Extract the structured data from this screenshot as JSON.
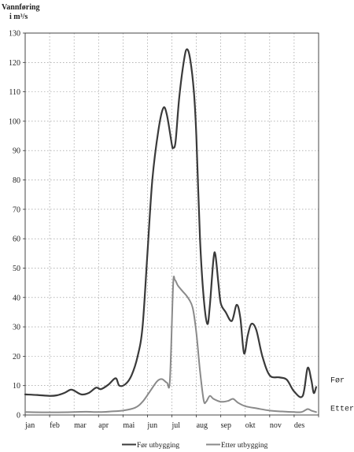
{
  "chart_data": {
    "type": "line",
    "ylabel_lines": [
      "Vannføring",
      "i m³/s"
    ],
    "xlabel": "",
    "ylim": [
      0,
      130
    ],
    "yticks": [
      0,
      10,
      20,
      30,
      40,
      50,
      60,
      70,
      80,
      90,
      100,
      110,
      120,
      130
    ],
    "categories": [
      "jan",
      "feb",
      "mar",
      "apr",
      "mai",
      "jun",
      "jul",
      "aug",
      "sep",
      "okt",
      "nov",
      "des"
    ],
    "grid": true,
    "legend_position": "bottom",
    "series": [
      {
        "name": "Før utbygging",
        "end_label": "Før",
        "color": "#3a3a3a",
        "points": [
          [
            0.0,
            7.0
          ],
          [
            0.5,
            6.8
          ],
          [
            1.0,
            6.5
          ],
          [
            1.3,
            6.7
          ],
          [
            1.6,
            7.5
          ],
          [
            1.85,
            8.6
          ],
          [
            2.0,
            8.3
          ],
          [
            2.3,
            7.0
          ],
          [
            2.6,
            7.5
          ],
          [
            2.9,
            9.3
          ],
          [
            3.1,
            8.8
          ],
          [
            3.4,
            10.3
          ],
          [
            3.7,
            12.5
          ],
          [
            3.85,
            10.0
          ],
          [
            4.1,
            10.5
          ],
          [
            4.35,
            13.5
          ],
          [
            4.6,
            20.0
          ],
          [
            4.8,
            30.0
          ],
          [
            5.0,
            55.0
          ],
          [
            5.2,
            80.0
          ],
          [
            5.45,
            97.0
          ],
          [
            5.65,
            104.5
          ],
          [
            5.8,
            102.0
          ],
          [
            6.0,
            92.0
          ],
          [
            6.05,
            91.0
          ],
          [
            6.15,
            93.0
          ],
          [
            6.3,
            108.0
          ],
          [
            6.5,
            121.0
          ],
          [
            6.62,
            124.5
          ],
          [
            6.75,
            121.0
          ],
          [
            6.9,
            110.0
          ],
          [
            7.0,
            95.0
          ],
          [
            7.15,
            60.0
          ],
          [
            7.3,
            40.0
          ],
          [
            7.45,
            31.0
          ],
          [
            7.55,
            37.0
          ],
          [
            7.7,
            53.0
          ],
          [
            7.78,
            54.5
          ],
          [
            7.9,
            45.0
          ],
          [
            8.0,
            38.0
          ],
          [
            8.2,
            35.0
          ],
          [
            8.45,
            32.0
          ],
          [
            8.65,
            37.5
          ],
          [
            8.8,
            33.0
          ],
          [
            8.95,
            21.0
          ],
          [
            9.1,
            27.0
          ],
          [
            9.25,
            31.0
          ],
          [
            9.45,
            29.0
          ],
          [
            9.7,
            20.0
          ],
          [
            10.0,
            13.5
          ],
          [
            10.4,
            12.8
          ],
          [
            10.7,
            12.0
          ],
          [
            11.0,
            8.0
          ],
          [
            11.35,
            6.5
          ],
          [
            11.55,
            16.0
          ],
          [
            11.7,
            12.0
          ],
          [
            11.8,
            7.5
          ],
          [
            11.9,
            9.5
          ]
        ]
      },
      {
        "name": "Etter utbygging",
        "end_label": "Etter",
        "color": "#8a8a8a",
        "points": [
          [
            0.0,
            1.0
          ],
          [
            1.0,
            0.9
          ],
          [
            2.0,
            1.0
          ],
          [
            2.5,
            1.1
          ],
          [
            3.0,
            1.0
          ],
          [
            3.5,
            1.2
          ],
          [
            4.0,
            1.5
          ],
          [
            4.5,
            2.5
          ],
          [
            4.8,
            4.5
          ],
          [
            5.1,
            8.0
          ],
          [
            5.4,
            11.5
          ],
          [
            5.6,
            12.2
          ],
          [
            5.8,
            11.0
          ],
          [
            5.92,
            12.0
          ],
          [
            6.05,
            44.0
          ],
          [
            6.12,
            46.0
          ],
          [
            6.25,
            44.0
          ],
          [
            6.45,
            42.0
          ],
          [
            6.65,
            40.0
          ],
          [
            6.85,
            36.5
          ],
          [
            7.0,
            28.0
          ],
          [
            7.15,
            15.0
          ],
          [
            7.3,
            5.0
          ],
          [
            7.4,
            4.5
          ],
          [
            7.55,
            6.5
          ],
          [
            7.7,
            5.5
          ],
          [
            8.0,
            4.5
          ],
          [
            8.3,
            4.8
          ],
          [
            8.5,
            5.5
          ],
          [
            8.7,
            4.2
          ],
          [
            9.0,
            3.0
          ],
          [
            9.5,
            2.2
          ],
          [
            10.0,
            1.5
          ],
          [
            10.5,
            1.2
          ],
          [
            11.0,
            1.0
          ],
          [
            11.3,
            1.0
          ],
          [
            11.55,
            2.0
          ],
          [
            11.7,
            1.5
          ],
          [
            11.9,
            1.0
          ]
        ]
      }
    ]
  }
}
